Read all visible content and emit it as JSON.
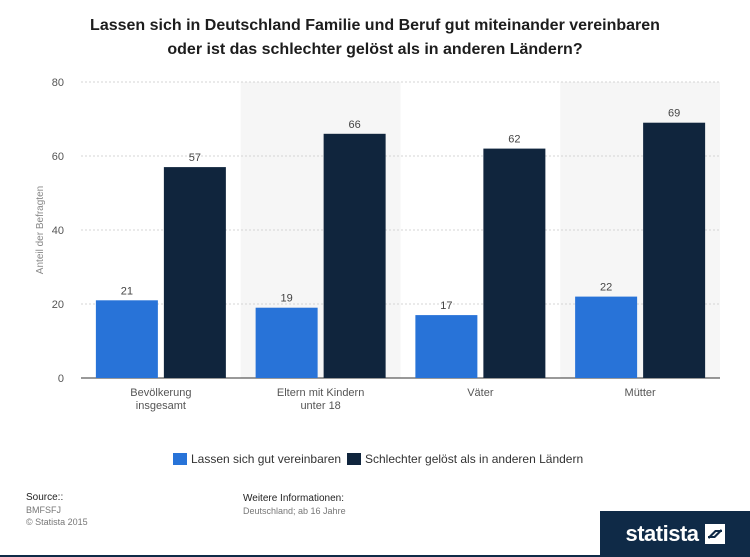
{
  "title_line1": "Lassen sich in Deutschland Familie und Beruf gut miteinander vereinbaren",
  "title_line2": "oder ist das schlechter gelöst als in anderen Ländern?",
  "chart_data": {
    "type": "bar",
    "title": "Lassen sich in Deutschland Familie und Beruf gut miteinander vereinbaren oder ist das schlechter gelöst als in anderen Ländern?",
    "ylabel": "Anteil der Befragten",
    "xlabel": "",
    "ylim": [
      0,
      80
    ],
    "yticks": [
      0,
      20,
      40,
      60,
      80
    ],
    "grid": true,
    "legend": "bottom-center",
    "categories": [
      [
        "Bevölkerung",
        "insgesamt"
      ],
      [
        "Eltern mit Kindern",
        "unter 18"
      ],
      [
        "Väter"
      ],
      [
        "Mütter"
      ]
    ],
    "series": [
      {
        "name": "Lassen sich gut vereinbaren",
        "color": "#2873d8",
        "values": [
          21,
          19,
          17,
          22
        ]
      },
      {
        "name": "Schlechter gelöst als in anderen Ländern",
        "color": "#10253d",
        "values": [
          57,
          66,
          62,
          69
        ]
      }
    ]
  },
  "footer": {
    "source_heading": "Source::",
    "source_name": "BMFSFJ",
    "copyright": "© Statista 2015",
    "info_heading": "Weitere Informationen:",
    "info_text": "Deutschland; ab 16 Jahre"
  },
  "brand": {
    "name": "statista",
    "bg_color": "#0f2a47"
  }
}
